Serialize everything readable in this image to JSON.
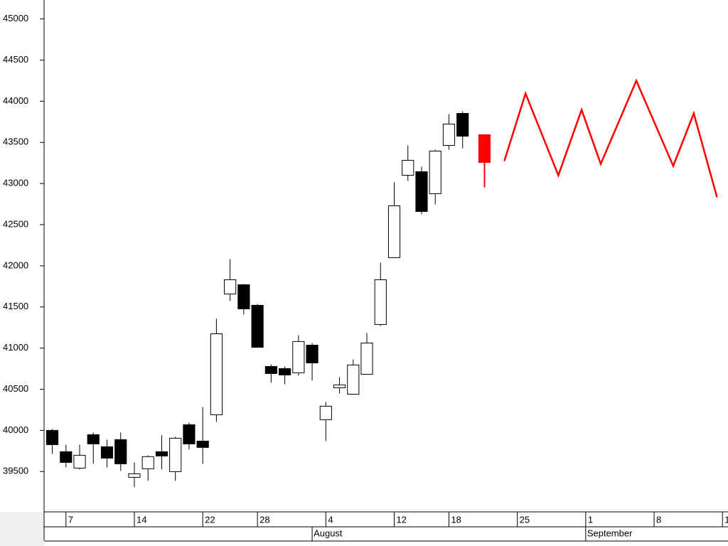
{
  "chart_data": {
    "type": "candlestick",
    "xlim": [
      -1.6,
      48.3
    ],
    "ylim": [
      39010,
      45230
    ],
    "yticks": [
      39500,
      40000,
      40500,
      41000,
      41500,
      42000,
      42500,
      43000,
      43500,
      44000,
      44500,
      45000
    ],
    "xticks": [
      {
        "value": 0,
        "label": "7"
      },
      {
        "value": 5,
        "label": "14"
      },
      {
        "value": 10,
        "label": "22"
      },
      {
        "value": 14,
        "label": "28"
      },
      {
        "value": 19,
        "label": "4"
      },
      {
        "value": 24,
        "label": "12"
      },
      {
        "value": 28,
        "label": "18"
      },
      {
        "value": 33,
        "label": "25"
      },
      {
        "value": 38,
        "label": "1"
      },
      {
        "value": 43,
        "label": "8"
      },
      {
        "value": 48,
        "label": "1"
      }
    ],
    "month_ticks": [
      {
        "value": 18,
        "label": "August"
      },
      {
        "value": 38,
        "label": "September"
      }
    ],
    "up_color": "#ffffff",
    "down_color": "#000000",
    "series": [
      {
        "type": "candlestick",
        "x": [
          -1,
          0,
          1,
          2,
          3,
          4,
          5,
          6,
          7,
          8,
          9,
          10,
          11,
          12,
          13,
          14,
          15,
          16,
          17,
          18,
          19,
          20,
          21,
          22,
          23,
          24,
          25,
          26,
          27,
          28,
          29
        ],
        "open": [
          40000,
          39741,
          39542,
          39948,
          39801,
          39888,
          39430,
          39534,
          39741,
          39499,
          40069,
          39870,
          40190,
          41658,
          41770,
          41520,
          40777,
          40751,
          40700,
          41036,
          40130,
          40518,
          40440,
          40682,
          41287,
          42099,
          43100,
          43143,
          42876,
          43463,
          43852
        ],
        "high": [
          40017,
          39827,
          39827,
          39974,
          39888,
          39974,
          39611,
          39698,
          39940,
          39922,
          40095,
          40285,
          41356,
          42081,
          41779,
          41537,
          40803,
          40777,
          41157,
          41062,
          40345,
          40648,
          40864,
          41183,
          42038,
          43014,
          43463,
          43204,
          43411,
          43843,
          43878
        ],
        "low": [
          39715,
          39551,
          39525,
          39594,
          39551,
          39508,
          39309,
          39387,
          39525,
          39387,
          39767,
          39594,
          40104,
          41572,
          41408,
          41010,
          40579,
          40561,
          40665,
          40605,
          39870,
          40449,
          40440,
          40682,
          41270,
          42099,
          43031,
          42625,
          42746,
          43411,
          43428
        ],
        "close": [
          39827,
          39611,
          39698,
          39836,
          39663,
          39594,
          39473,
          39681,
          39689,
          39905,
          39836,
          39793,
          41174,
          41831,
          41477,
          41010,
          40691,
          40674,
          41080,
          40820,
          40294,
          40553,
          40795,
          41062,
          41831,
          42729,
          43282,
          42660,
          43394,
          43722,
          43575
        ]
      },
      {
        "type": "candlestick",
        "color": "#ff0000",
        "x": [
          30.6
        ],
        "open": [
          43593
        ],
        "high": [
          43593
        ],
        "low": [
          42953
        ],
        "close": [
          43256
        ]
      },
      {
        "type": "line",
        "color": "#ff0000",
        "x": [
          32.05,
          33.6,
          36.0,
          37.7,
          39.1,
          41.7,
          44.4,
          45.9,
          47.6
        ],
        "values": [
          43273,
          44094,
          43100,
          43895,
          43238,
          44249,
          43213,
          43852,
          42833
        ]
      }
    ]
  }
}
